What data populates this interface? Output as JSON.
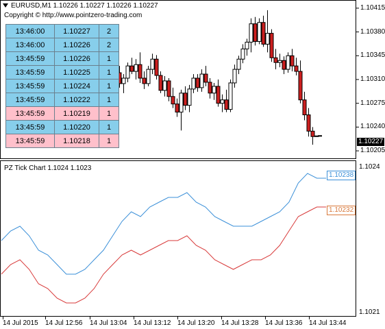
{
  "header": {
    "symbol_line": "EURUSD,M1  1.10226 1.10227 1.10226 1.10227",
    "copyright": "Copyright © http://www.pointzero-trading.com"
  },
  "indicator": {
    "title": "PZ Tick Chart 1.1024 1.1023",
    "ask_label": "1.10238",
    "bid_label": "1.10232",
    "y_top_label": "1.1024",
    "y_bottom_label": "1.1021"
  },
  "price_axis": {
    "ticks": [
      "1.10415",
      "1.10380",
      "1.10345",
      "1.10310",
      "1.10275",
      "1.10240",
      "1.10205"
    ],
    "current": "1.10227"
  },
  "time_axis": [
    "14 Jul 2015",
    "14 Jul 12:56",
    "14 Jul 13:04",
    "14 Jul 13:12",
    "14 Jul 13:20",
    "14 Jul 13:28",
    "14 Jul 13:36",
    "14 Jul 13:44"
  ],
  "ticks_table": [
    {
      "time": "13:46:00",
      "price": "1.10227",
      "vol": "2",
      "dir": "up"
    },
    {
      "time": "13:46:00",
      "price": "1.10226",
      "vol": "2",
      "dir": "up"
    },
    {
      "time": "13:45:59",
      "price": "1.10226",
      "vol": "1",
      "dir": "up"
    },
    {
      "time": "13:45:59",
      "price": "1.10225",
      "vol": "1",
      "dir": "up"
    },
    {
      "time": "13:45:59",
      "price": "1.10224",
      "vol": "1",
      "dir": "up"
    },
    {
      "time": "13:45:59",
      "price": "1.10222",
      "vol": "1",
      "dir": "up"
    },
    {
      "time": "13:45:59",
      "price": "1.10219",
      "vol": "1",
      "dir": "down"
    },
    {
      "time": "13:45:59",
      "price": "1.10220",
      "vol": "1",
      "dir": "up"
    },
    {
      "time": "13:45:59",
      "price": "1.10218",
      "vol": "1",
      "dir": "down"
    }
  ],
  "colors": {
    "bull_fill": "#ffffff",
    "bear_fill": "#cc1f1f",
    "up_row": "#87ceeb",
    "down_row": "#ffc0cb",
    "ask_line": "#3a8fd8",
    "bid_line": "#d83a3a"
  },
  "chart_data": [
    {
      "type": "candlestick",
      "title": "",
      "ylim": [
        1.10195,
        1.10425
      ],
      "candles": [
        {
          "o": 1.1032,
          "h": 1.10332,
          "l": 1.103,
          "c": 1.10312
        },
        {
          "o": 1.10312,
          "h": 1.1033,
          "l": 1.10298,
          "c": 1.10325
        },
        {
          "o": 1.10325,
          "h": 1.1034,
          "l": 1.1031,
          "c": 1.10318
        },
        {
          "o": 1.10318,
          "h": 1.10336,
          "l": 1.10308,
          "c": 1.1033
        },
        {
          "o": 1.1033,
          "h": 1.10342,
          "l": 1.10315,
          "c": 1.10318
        },
        {
          "o": 1.10318,
          "h": 1.1033,
          "l": 1.103,
          "c": 1.10322
        },
        {
          "o": 1.10322,
          "h": 1.10336,
          "l": 1.10306,
          "c": 1.1031
        },
        {
          "o": 1.1031,
          "h": 1.10324,
          "l": 1.10298,
          "c": 1.10318
        },
        {
          "o": 1.10318,
          "h": 1.10335,
          "l": 1.10304,
          "c": 1.10308
        },
        {
          "o": 1.10308,
          "h": 1.10326,
          "l": 1.10298,
          "c": 1.10318
        },
        {
          "o": 1.10318,
          "h": 1.10338,
          "l": 1.10308,
          "c": 1.10326
        },
        {
          "o": 1.10326,
          "h": 1.10345,
          "l": 1.10314,
          "c": 1.1032
        },
        {
          "o": 1.1032,
          "h": 1.1033,
          "l": 1.10298,
          "c": 1.10304
        },
        {
          "o": 1.10304,
          "h": 1.10318,
          "l": 1.1029,
          "c": 1.10312
        },
        {
          "o": 1.10312,
          "h": 1.10335,
          "l": 1.10306,
          "c": 1.1033
        },
        {
          "o": 1.1033,
          "h": 1.10342,
          "l": 1.10318,
          "c": 1.10322
        },
        {
          "o": 1.10322,
          "h": 1.1034,
          "l": 1.1031,
          "c": 1.10332
        },
        {
          "o": 1.10332,
          "h": 1.1035,
          "l": 1.10305,
          "c": 1.10312
        },
        {
          "o": 1.10312,
          "h": 1.10322,
          "l": 1.10296,
          "c": 1.10304
        },
        {
          "o": 1.10304,
          "h": 1.1033,
          "l": 1.103,
          "c": 1.10325
        },
        {
          "o": 1.10325,
          "h": 1.10348,
          "l": 1.10318,
          "c": 1.1034
        },
        {
          "o": 1.1034,
          "h": 1.10346,
          "l": 1.1031,
          "c": 1.10316
        },
        {
          "o": 1.10316,
          "h": 1.10322,
          "l": 1.1029,
          "c": 1.10294
        },
        {
          "o": 1.10294,
          "h": 1.10315,
          "l": 1.10285,
          "c": 1.10308
        },
        {
          "o": 1.10308,
          "h": 1.10312,
          "l": 1.10278,
          "c": 1.10285
        },
        {
          "o": 1.10285,
          "h": 1.10298,
          "l": 1.10268,
          "c": 1.10274
        },
        {
          "o": 1.10274,
          "h": 1.10282,
          "l": 1.10255,
          "c": 1.10262
        },
        {
          "o": 1.10262,
          "h": 1.10295,
          "l": 1.10235,
          "c": 1.1029
        },
        {
          "o": 1.1029,
          "h": 1.103,
          "l": 1.10265,
          "c": 1.10272
        },
        {
          "o": 1.10272,
          "h": 1.10302,
          "l": 1.10262,
          "c": 1.10296
        },
        {
          "o": 1.10296,
          "h": 1.10318,
          "l": 1.1029,
          "c": 1.10312
        },
        {
          "o": 1.10312,
          "h": 1.10318,
          "l": 1.10292,
          "c": 1.10298
        },
        {
          "o": 1.10298,
          "h": 1.10325,
          "l": 1.10292,
          "c": 1.10318
        },
        {
          "o": 1.10318,
          "h": 1.1033,
          "l": 1.103,
          "c": 1.10306
        },
        {
          "o": 1.10306,
          "h": 1.10312,
          "l": 1.10282,
          "c": 1.1029
        },
        {
          "o": 1.1029,
          "h": 1.10305,
          "l": 1.1028,
          "c": 1.103
        },
        {
          "o": 1.103,
          "h": 1.1031,
          "l": 1.1027,
          "c": 1.10275
        },
        {
          "o": 1.10275,
          "h": 1.10288,
          "l": 1.10262,
          "c": 1.1028
        },
        {
          "o": 1.1028,
          "h": 1.10295,
          "l": 1.10262,
          "c": 1.10266
        },
        {
          "o": 1.10266,
          "h": 1.1031,
          "l": 1.10262,
          "c": 1.10305
        },
        {
          "o": 1.10305,
          "h": 1.10332,
          "l": 1.10298,
          "c": 1.10325
        },
        {
          "o": 1.10325,
          "h": 1.10345,
          "l": 1.10318,
          "c": 1.1034
        },
        {
          "o": 1.1034,
          "h": 1.10362,
          "l": 1.10334,
          "c": 1.10355
        },
        {
          "o": 1.10355,
          "h": 1.1037,
          "l": 1.10345,
          "c": 1.10365
        },
        {
          "o": 1.10365,
          "h": 1.104,
          "l": 1.1035,
          "c": 1.10392
        },
        {
          "o": 1.10392,
          "h": 1.10402,
          "l": 1.1036,
          "c": 1.10366
        },
        {
          "o": 1.10366,
          "h": 1.104,
          "l": 1.10362,
          "c": 1.10394
        },
        {
          "o": 1.10394,
          "h": 1.10404,
          "l": 1.10358,
          "c": 1.10362
        },
        {
          "o": 1.10362,
          "h": 1.10412,
          "l": 1.1035,
          "c": 1.10378
        },
        {
          "o": 1.10378,
          "h": 1.10384,
          "l": 1.10336,
          "c": 1.10342
        },
        {
          "o": 1.10342,
          "h": 1.10355,
          "l": 1.10325,
          "c": 1.10335
        },
        {
          "o": 1.10335,
          "h": 1.10348,
          "l": 1.10328,
          "c": 1.10338
        },
        {
          "o": 1.10338,
          "h": 1.10344,
          "l": 1.10318,
          "c": 1.10325
        },
        {
          "o": 1.10325,
          "h": 1.1035,
          "l": 1.1032,
          "c": 1.10345
        },
        {
          "o": 1.10345,
          "h": 1.10355,
          "l": 1.10322,
          "c": 1.1033
        },
        {
          "o": 1.1033,
          "h": 1.10342,
          "l": 1.10316,
          "c": 1.10322
        },
        {
          "o": 1.10322,
          "h": 1.10338,
          "l": 1.10275,
          "c": 1.1028
        },
        {
          "o": 1.1028,
          "h": 1.10292,
          "l": 1.1025,
          "c": 1.10258
        },
        {
          "o": 1.10258,
          "h": 1.10268,
          "l": 1.10226,
          "c": 1.10234
        },
        {
          "o": 1.10234,
          "h": 1.1024,
          "l": 1.10214,
          "c": 1.10226
        },
        {
          "o": 1.10227,
          "h": 1.10227,
          "l": 1.10226,
          "c": 1.10227
        }
      ]
    },
    {
      "type": "line",
      "title": "PZ Tick Chart 1.1024 1.1023",
      "ylim": [
        1.1021,
        1.1024
      ],
      "series": [
        {
          "name": "1.10238",
          "values": [
            1.10225,
            1.10227,
            1.10228,
            1.10226,
            1.10223,
            1.10222,
            1.1022,
            1.10218,
            1.10218,
            1.10219,
            1.10221,
            1.10223,
            1.10226,
            1.10229,
            1.10231,
            1.1023,
            1.10232,
            1.10233,
            1.10234,
            1.10234,
            1.10235,
            1.10233,
            1.10232,
            1.1023,
            1.10229,
            1.10228,
            1.10228,
            1.10228,
            1.10229,
            1.1023,
            1.10231,
            1.10233,
            1.10237,
            1.10239,
            1.10238,
            1.10238
          ]
        },
        {
          "name": "1.10232",
          "values": [
            1.10218,
            1.1022,
            1.10221,
            1.10219,
            1.10216,
            1.10215,
            1.10213,
            1.10212,
            1.10212,
            1.10213,
            1.10215,
            1.10218,
            1.1022,
            1.10222,
            1.10223,
            1.10222,
            1.10223,
            1.10224,
            1.10225,
            1.10225,
            1.10226,
            1.10224,
            1.10223,
            1.10221,
            1.1022,
            1.10219,
            1.1022,
            1.10221,
            1.10221,
            1.10222,
            1.10224,
            1.10227,
            1.1023,
            1.10231,
            1.10232,
            1.10232
          ]
        }
      ]
    }
  ]
}
